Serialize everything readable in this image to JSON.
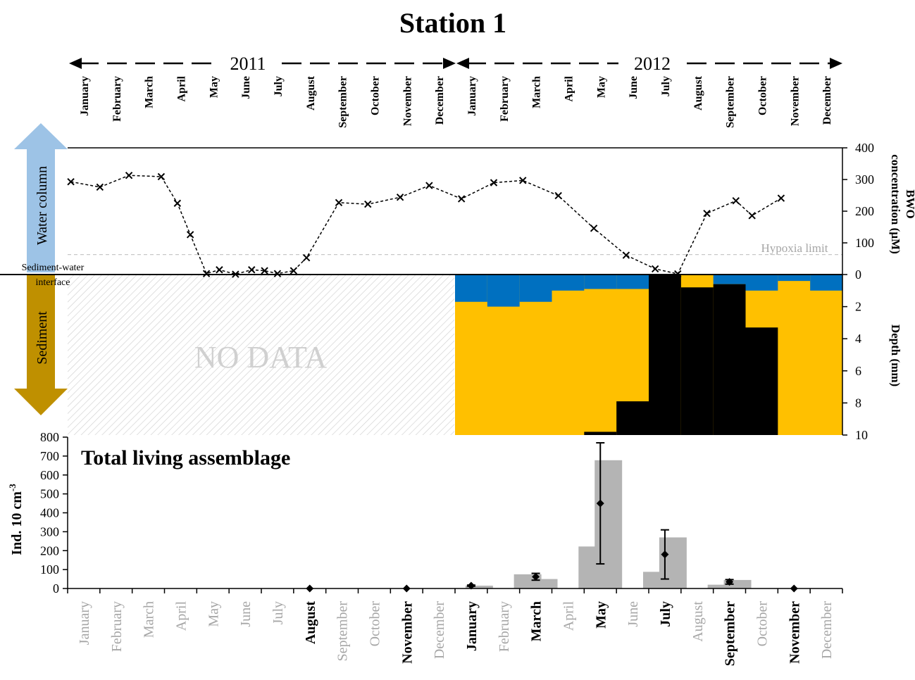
{
  "title": "Station 1",
  "years": [
    "2011",
    "2012"
  ],
  "months": [
    "January",
    "February",
    "March",
    "April",
    "May",
    "June",
    "July",
    "August",
    "September",
    "October",
    "November",
    "December"
  ],
  "side_labels": {
    "water_column": "Water column",
    "sediment": "Sediment",
    "interface_line1": "Sediment-water",
    "interface_line2": "interface"
  },
  "annotations": {
    "no_data": "NO DATA",
    "hypoxia": "Hypoxia limit"
  },
  "bottom_sampled_labels": [
    "August",
    "November",
    "January",
    "March",
    "May",
    "July",
    "September",
    "November"
  ],
  "colors": {
    "oxic": "#0070c0",
    "suboxic": "#ffc000",
    "anoxic": "#000000",
    "bars": "#b4b4b4",
    "gray_text": "#a6a6a6",
    "arrow_top": "#9dc3e6",
    "arrow_bottom": "#bf9000"
  },
  "chart_data": [
    {
      "type": "line",
      "ylabel_line1": "BWO",
      "ylabel_line2": "concentration (µM)",
      "ylim": [
        0,
        400
      ],
      "yticks": [
        "0",
        "100",
        "200",
        "300",
        "400"
      ],
      "hypoxia_limit": 63,
      "points": [
        {
          "month": 0.1,
          "value": 293
        },
        {
          "month": 1.0,
          "value": 276
        },
        {
          "month": 1.9,
          "value": 313
        },
        {
          "month": 2.9,
          "value": 309
        },
        {
          "month": 3.4,
          "value": 225
        },
        {
          "month": 3.8,
          "value": 126
        },
        {
          "month": 4.3,
          "value": 3
        },
        {
          "month": 4.7,
          "value": 15
        },
        {
          "month": 5.2,
          "value": 1
        },
        {
          "month": 5.7,
          "value": 15
        },
        {
          "month": 6.1,
          "value": 12
        },
        {
          "month": 6.5,
          "value": 3
        },
        {
          "month": 7.0,
          "value": 12
        },
        {
          "month": 7.4,
          "value": 53
        },
        {
          "month": 8.4,
          "value": 227
        },
        {
          "month": 9.3,
          "value": 222
        },
        {
          "month": 10.3,
          "value": 244
        },
        {
          "month": 11.2,
          "value": 281
        },
        {
          "month": 12.2,
          "value": 239
        },
        {
          "month": 13.2,
          "value": 290
        },
        {
          "month": 14.1,
          "value": 297
        },
        {
          "month": 15.2,
          "value": 249
        },
        {
          "month": 16.3,
          "value": 146
        },
        {
          "month": 17.3,
          "value": 61
        },
        {
          "month": 18.2,
          "value": 18
        },
        {
          "month": 18.9,
          "value": 2
        },
        {
          "month": 19.8,
          "value": 193
        },
        {
          "month": 20.7,
          "value": 233
        },
        {
          "month": 21.2,
          "value": 186
        },
        {
          "month": 22.1,
          "value": 241
        }
      ]
    },
    {
      "type": "area",
      "ylabel": "Depth (mm)",
      "ylim": [
        0,
        10
      ],
      "yticks": [
        "0",
        "2",
        "4",
        "6",
        "8",
        "10"
      ],
      "columns": [
        {
          "start": 12.0,
          "end": 13.0,
          "oxic_bottom": 1.7,
          "anoxic_top": 10
        },
        {
          "start": 13.0,
          "end": 14.0,
          "oxic_bottom": 2.0,
          "anoxic_top": 10
        },
        {
          "start": 14.0,
          "end": 15.0,
          "oxic_bottom": 1.7,
          "anoxic_top": 10
        },
        {
          "start": 15.0,
          "end": 16.0,
          "oxic_bottom": 1.0,
          "anoxic_top": 10
        },
        {
          "start": 16.0,
          "end": 17.0,
          "oxic_bottom": 0.9,
          "anoxic_top": 9.8
        },
        {
          "start": 17.0,
          "end": 18.0,
          "oxic_bottom": 0.9,
          "anoxic_top": 7.9
        },
        {
          "start": 18.0,
          "end": 19.0,
          "oxic_bottom": 0.0,
          "anoxic_top": 0.0
        },
        {
          "start": 19.0,
          "end": 20.0,
          "oxic_bottom": 0.0,
          "anoxic_top": 0.8
        },
        {
          "start": 20.0,
          "end": 21.0,
          "oxic_bottom": 0.6,
          "anoxic_top": 0.6
        },
        {
          "start": 21.0,
          "end": 22.0,
          "oxic_bottom": 1.0,
          "anoxic_top": 3.3
        },
        {
          "start": 22.0,
          "end": 23.0,
          "oxic_bottom": 0.4,
          "anoxic_top": 10
        },
        {
          "start": 23.0,
          "end": 24.0,
          "oxic_bottom": 1.0,
          "anoxic_top": 10
        }
      ]
    },
    {
      "type": "bar",
      "title": "Total living assemblage",
      "ylabel": "Ind. 10 cm",
      "ylabel_sup": "-3",
      "ylim": [
        0,
        800
      ],
      "yticks": [
        "0",
        "100",
        "200",
        "300",
        "400",
        "500",
        "600",
        "700",
        "800"
      ],
      "bars": [
        {
          "month": 12.75,
          "value": 15
        },
        {
          "month": 14.25,
          "value": 75
        },
        {
          "month": 14.75,
          "value": 50
        },
        {
          "month": 16.25,
          "value": 222
        },
        {
          "month": 16.75,
          "value": 678
        },
        {
          "month": 18.25,
          "value": 88
        },
        {
          "month": 18.75,
          "value": 270
        },
        {
          "month": 20.25,
          "value": 20
        },
        {
          "month": 20.75,
          "value": 45
        }
      ],
      "means": [
        {
          "month": 7.5,
          "value": 0,
          "err": 0
        },
        {
          "month": 10.5,
          "value": 0,
          "err": 0
        },
        {
          "month": 12.5,
          "value": 15,
          "err": 3
        },
        {
          "month": 14.5,
          "value": 62,
          "err": 18
        },
        {
          "month": 16.5,
          "value": 450,
          "err": 320
        },
        {
          "month": 18.5,
          "value": 180,
          "err": 130
        },
        {
          "month": 20.5,
          "value": 35,
          "err": 12
        },
        {
          "month": 22.5,
          "value": 0,
          "err": 0
        }
      ]
    }
  ]
}
